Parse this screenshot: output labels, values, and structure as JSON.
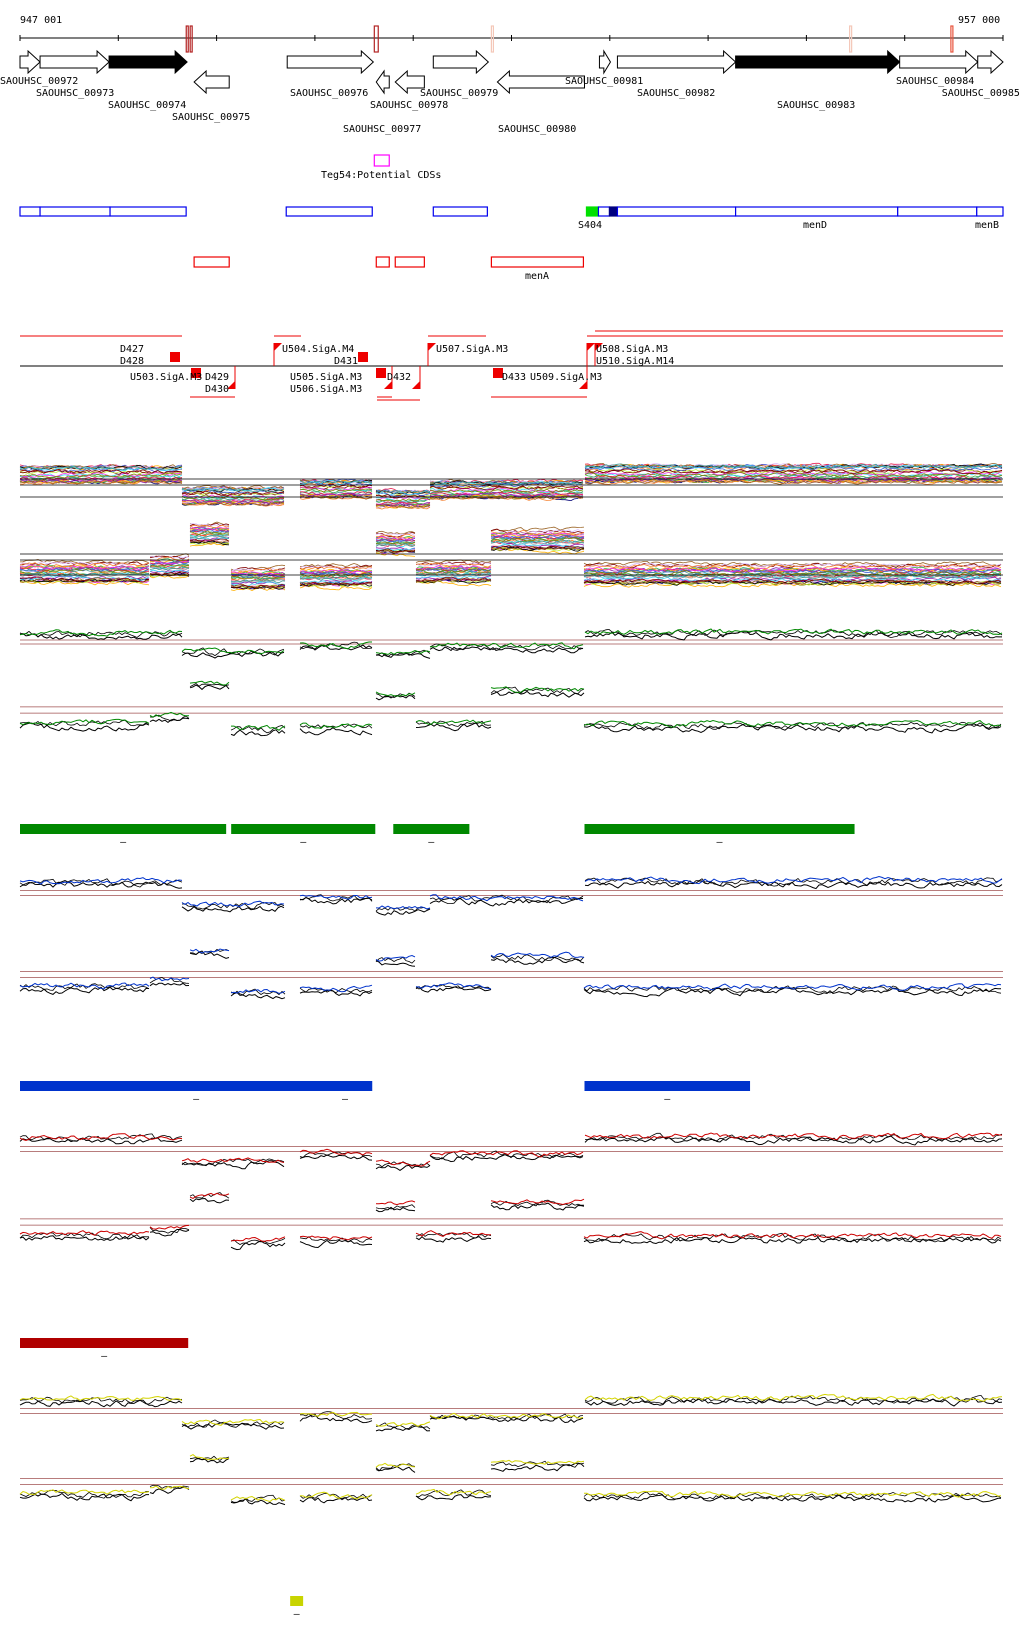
{
  "axis": {
    "start_label": "947 001",
    "end_label": "957 000",
    "start": 947001,
    "end": 957000
  },
  "axis_marks": [
    {
      "start": 948692,
      "end": 948712,
      "color": "#b22222"
    },
    {
      "start": 948732,
      "end": 948752,
      "color": "#b22222"
    },
    {
      "start": 950605,
      "end": 950645,
      "color": "#b22222"
    },
    {
      "start": 951796,
      "end": 951816,
      "color": "#f4c7b8"
    },
    {
      "start": 955440,
      "end": 955460,
      "color": "#f4c7b8"
    },
    {
      "start": 956470,
      "end": 956480,
      "color": "#e8543c"
    }
  ],
  "genes": [
    {
      "name": "SAOUHSC_00972",
      "start": 947001,
      "end": 947205,
      "strand": "+",
      "filled": false
    },
    {
      "name": "SAOUHSC_00973",
      "start": 947205,
      "end": 947907,
      "strand": "+",
      "filled": false
    },
    {
      "name": "SAOUHSC_00974",
      "start": 947907,
      "end": 948701,
      "strand": "+",
      "filled": true
    },
    {
      "name": "SAOUHSC_00975",
      "start": 948772,
      "end": 949129,
      "strand": "-",
      "filled": false
    },
    {
      "name": "SAOUHSC_00976",
      "start": 949719,
      "end": 950595,
      "strand": "+",
      "filled": false
    },
    {
      "name": "SAOUHSC_00977",
      "start": 950625,
      "end": 950757,
      "strand": "-",
      "filled": false
    },
    {
      "name": "SAOUHSC_00978",
      "start": 950818,
      "end": 951114,
      "strand": "-",
      "filled": false
    },
    {
      "name": "SAOUHSC_00979",
      "start": 951205,
      "end": 951765,
      "strand": "+",
      "filled": false
    },
    {
      "name": "SAOUHSC_00980",
      "start": 951857,
      "end": 952743,
      "strand": "-",
      "filled": false
    },
    {
      "name": "SAOUHSC_00981",
      "start": 952895,
      "end": 953007,
      "strand": "+",
      "filled": false
    },
    {
      "name": "SAOUHSC_00982",
      "start": 953078,
      "end": 954280,
      "strand": "+",
      "filled": false
    },
    {
      "name": "SAOUHSC_00983",
      "start": 954280,
      "end": 955949,
      "strand": "+",
      "filled": true
    },
    {
      "name": "SAOUHSC_00984",
      "start": 955949,
      "end": 956743,
      "strand": "+",
      "filled": false
    },
    {
      "name": "SAOUHSC_00985",
      "start": 956743,
      "end": 957000,
      "strand": "+",
      "filled": false
    }
  ],
  "potential_cds": {
    "label": "Teg54:Potential CDSs",
    "start": 950605,
    "end": 950757,
    "color": "#ff00ff"
  },
  "blue_features": [
    {
      "start": 947001,
      "end": 947205,
      "label": ""
    },
    {
      "start": 947205,
      "end": 947917,
      "label": ""
    },
    {
      "start": 947917,
      "end": 948691,
      "label": ""
    },
    {
      "start": 949709,
      "end": 950584,
      "label": ""
    },
    {
      "start": 951205,
      "end": 951755,
      "label": ""
    },
    {
      "start": 952763,
      "end": 952885,
      "label": "S404",
      "fill": "#00e000"
    },
    {
      "start": 952885,
      "end": 952997,
      "label": ""
    },
    {
      "start": 952997,
      "end": 953078,
      "label": "",
      "fill": "#000080"
    },
    {
      "start": 953078,
      "end": 954280,
      "label": ""
    },
    {
      "start": 954280,
      "end": 955929,
      "label": "menD"
    },
    {
      "start": 955929,
      "end": 956733,
      "label": ""
    },
    {
      "start": 956733,
      "end": 957000,
      "label": "menB"
    }
  ],
  "red_features": [
    {
      "start": 948772,
      "end": 949129,
      "label": ""
    },
    {
      "start": 950625,
      "end": 950757,
      "label": ""
    },
    {
      "start": 950818,
      "end": 951114,
      "label": ""
    },
    {
      "start": 951796,
      "end": 952732,
      "label": "menA"
    }
  ],
  "sig_labels": [
    "U504.SigA.M4",
    "D431",
    "U507.SigA.M3",
    "U508.SigA.M3",
    "U510.SigA.M14",
    "D427",
    "D428",
    "D429",
    "D430",
    "U503.SigA.M3",
    "U505.SigA.M3",
    "U506.SigA.M3",
    "D432",
    "D433",
    "U509.SigA.M3"
  ],
  "segment_bars": [
    {
      "color": "#008800",
      "bars": [
        {
          "start": 947001,
          "end": 949098,
          "label": "–"
        },
        {
          "start": 949149,
          "end": 950615,
          "label": "–"
        },
        {
          "start": 950798,
          "end": 951572,
          "label": "–"
        },
        {
          "start": 952743,
          "end": 955490,
          "label": "–"
        }
      ]
    },
    {
      "color": "#0033cc",
      "bars": [
        {
          "start": 947001,
          "end": 950584,
          "label": "–"
        },
        {
          "start": 950584,
          "end": 950665,
          "label": "–"
        },
        {
          "start": 952743,
          "end": 954427,
          "label": "–"
        }
      ]
    },
    {
      "color": "#b00000",
      "bars": [
        {
          "start": 947001,
          "end": 948712,
          "label": "–"
        }
      ]
    },
    {
      "color": "#c8d400",
      "bars": [
        {
          "start": 949749,
          "end": 949881,
          "label": "–"
        }
      ]
    }
  ],
  "track_colors": {
    "condition1": "#008800",
    "condition2": "#0033cc",
    "condition3": "#cc0000",
    "condition4": "#d4d400",
    "reference": "#000000",
    "threshold": "#a05050"
  }
}
